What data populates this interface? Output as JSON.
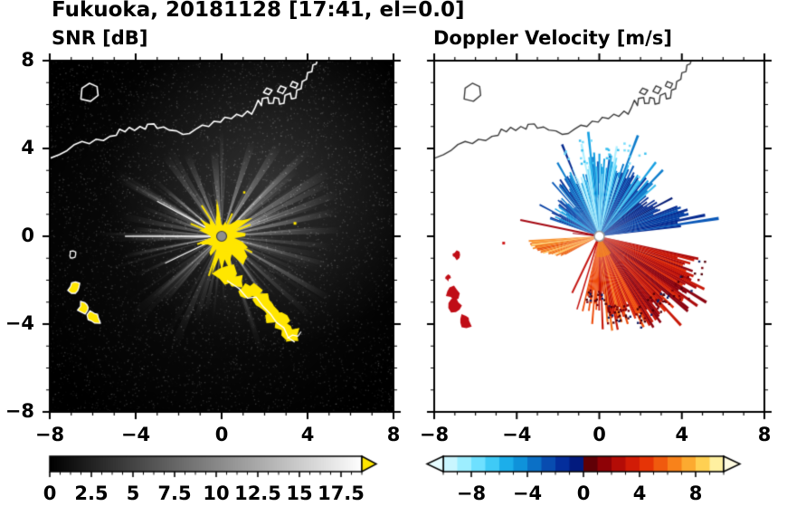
{
  "title": "Fukuoka, 20181128 [17:41, el=0.0]",
  "panels": [
    {
      "title": "SNR [dB]",
      "xlim": [
        -8,
        8
      ],
      "ylim": [
        -8,
        8
      ],
      "xtick_values": [
        -8,
        -4,
        0,
        4,
        8
      ],
      "xtick_labels": [
        "−8",
        "−4",
        "0",
        "4",
        "8"
      ],
      "ytick_values": [
        8,
        4,
        0,
        -4,
        -8
      ],
      "ytick_labels": [
        "8",
        "4",
        "0",
        "−4",
        "−8"
      ]
    },
    {
      "title": "Doppler Velocity [m/s]",
      "xlim": [
        -8,
        8
      ],
      "ylim": [
        -8,
        8
      ],
      "xtick_values": [
        -8,
        -4,
        0,
        4,
        8
      ],
      "xtick_labels": [
        "−8",
        "−4",
        "0",
        "4",
        "8"
      ],
      "ytick_values": [
        8,
        4,
        0,
        -4,
        -8
      ],
      "ytick_labels": []
    }
  ],
  "colorbars": [
    {
      "panel": "SNR",
      "vmin": 0,
      "vmax": 18.75,
      "tick_values": [
        0,
        2.5,
        5,
        7.5,
        10,
        12.5,
        15,
        17.5
      ],
      "tick_labels": [
        "0",
        "2.5",
        "5",
        "7.5",
        "10",
        "12.5",
        "15",
        "17.5"
      ],
      "bar_color_start": "#000000",
      "bar_color_end": "#ffffff",
      "over_arrow_color": "#ffe600"
    },
    {
      "panel": "Doppler",
      "vmin": -10,
      "vmax": 10,
      "tick_values": [
        -8,
        -4,
        0,
        4,
        8
      ],
      "tick_labels": [
        "−8",
        "−4",
        "0",
        "4",
        "8"
      ],
      "segments": [
        "#c9f6ff",
        "#9deeff",
        "#6ee0ff",
        "#3fcaf6",
        "#1caeea",
        "#0f92da",
        "#0b70c6",
        "#084cb0",
        "#042e9c",
        "#021a7e",
        "#600006",
        "#8e0206",
        "#b40c06",
        "#d21c06",
        "#e63406",
        "#f05a0e",
        "#f8821a",
        "#fcaa30",
        "#ffd052",
        "#fff0a0"
      ],
      "under_arrow_color": "#e6fcff",
      "over_arrow_color": "#fffbe0"
    }
  ],
  "coastline": {
    "mainland": [
      [
        -8,
        3.55
      ],
      [
        -7.55,
        3.72
      ],
      [
        -7.2,
        3.9
      ],
      [
        -6.85,
        4.18
      ],
      [
        -6.5,
        4.32
      ],
      [
        -6.15,
        4.22
      ],
      [
        -5.85,
        4.42
      ],
      [
        -5.5,
        4.36
      ],
      [
        -5.2,
        4.55
      ],
      [
        -4.9,
        4.6
      ],
      [
        -4.75,
        4.88
      ],
      [
        -4.5,
        4.76
      ],
      [
        -4.3,
        4.96
      ],
      [
        -4.05,
        4.82
      ],
      [
        -3.8,
        5.0
      ],
      [
        -3.55,
        4.88
      ],
      [
        -3.45,
        5.1
      ],
      [
        -3.15,
        5.12
      ],
      [
        -3.0,
        4.92
      ],
      [
        -2.7,
        4.98
      ],
      [
        -2.45,
        4.84
      ],
      [
        -2.1,
        4.8
      ],
      [
        -1.8,
        4.64
      ],
      [
        -1.5,
        4.68
      ],
      [
        -1.2,
        4.88
      ],
      [
        -0.9,
        5.06
      ],
      [
        -0.6,
        5.0
      ],
      [
        -0.35,
        5.24
      ],
      [
        -0.05,
        5.2
      ],
      [
        0.15,
        5.42
      ],
      [
        0.45,
        5.36
      ],
      [
        0.7,
        5.56
      ],
      [
        0.95,
        5.46
      ],
      [
        1.2,
        5.7
      ],
      [
        1.4,
        5.56
      ],
      [
        1.55,
        5.85
      ],
      [
        1.7,
        6.2
      ],
      [
        1.85,
        5.95
      ],
      [
        1.9,
        6.28
      ],
      [
        2.15,
        6.32
      ],
      [
        2.2,
        6.05
      ],
      [
        2.4,
        6.06
      ],
      [
        2.45,
        6.32
      ],
      [
        2.65,
        6.28
      ],
      [
        2.7,
        6.02
      ],
      [
        2.9,
        6.06
      ],
      [
        2.95,
        6.42
      ],
      [
        3.2,
        6.52
      ],
      [
        3.25,
        6.26
      ],
      [
        3.45,
        6.3
      ],
      [
        3.5,
        6.66
      ],
      [
        3.7,
        6.72
      ],
      [
        3.75,
        7.05
      ],
      [
        3.95,
        7.15
      ],
      [
        4.0,
        7.45
      ],
      [
        4.2,
        7.5
      ],
      [
        4.25,
        7.8
      ],
      [
        4.4,
        7.85
      ],
      [
        4.45,
        8.0
      ]
    ],
    "island": [
      [
        -6.55,
        6.25
      ],
      [
        -6.1,
        6.15
      ],
      [
        -5.75,
        6.42
      ],
      [
        -5.8,
        6.82
      ],
      [
        -6.15,
        6.97
      ],
      [
        -6.5,
        6.75
      ]
    ],
    "harbor_details": [
      [
        [
          1.95,
          6.55
        ],
        [
          2.1,
          6.75
        ],
        [
          2.35,
          6.65
        ],
        [
          2.2,
          6.45
        ]
      ],
      [
        [
          2.6,
          6.6
        ],
        [
          2.75,
          6.85
        ],
        [
          3.0,
          6.75
        ],
        [
          2.85,
          6.5
        ]
      ],
      [
        [
          3.2,
          6.85
        ],
        [
          3.3,
          7.05
        ],
        [
          3.55,
          6.95
        ],
        [
          3.45,
          6.75
        ]
      ]
    ]
  },
  "chart_data": [
    {
      "type": "heatmap",
      "title": "SNR [dB]",
      "xlim": [
        -8,
        8
      ],
      "ylim": [
        -8,
        8
      ],
      "xticks": [
        -8,
        -4,
        0,
        4,
        8
      ],
      "yticks": [
        8,
        4,
        0,
        -4,
        -8
      ],
      "background_color": "#000000",
      "radar_origin_xy": [
        0,
        0
      ],
      "colorbar": {
        "vmin": 0,
        "vmax": 18.75,
        "ticks": [
          0,
          2.5,
          5,
          7.5,
          10,
          12.5,
          15,
          17.5
        ],
        "colormap": "black-to-white grayscale",
        "over_color": "#ffe600"
      },
      "features": {
        "beam_texture": "bright radial spokes from radar origin over dark speckle noise, broad bright haze in NE quadrant, strong thin horizontal ray toward west",
        "saturated_core": {
          "color": "#ffe600",
          "radius": 1.3
        },
        "south_coast_clutter_path": [
          [
            0.15,
            -1.7
          ],
          [
            0.7,
            -2.05
          ],
          [
            1.1,
            -2.5
          ],
          [
            1.5,
            -2.45
          ],
          [
            1.85,
            -2.9
          ],
          [
            2.2,
            -3.25
          ],
          [
            2.45,
            -3.6
          ],
          [
            2.8,
            -3.85
          ],
          [
            3.0,
            -4.3
          ],
          [
            3.3,
            -4.5
          ]
        ],
        "west_clutter_xy": [
          [
            -6.95,
            -0.85
          ],
          [
            -6.85,
            -2.35
          ],
          [
            -6.4,
            -3.25
          ],
          [
            -5.95,
            -3.7
          ]
        ],
        "coastline_color": "#ffffff",
        "center_marker_color": "#8e8e8e"
      }
    },
    {
      "type": "heatmap",
      "title": "Doppler Velocity [m/s]",
      "xlim": [
        -8,
        8
      ],
      "ylim": [
        -8,
        8
      ],
      "xticks": [
        -8,
        -4,
        0,
        4,
        8
      ],
      "yticks": [
        8,
        4,
        0,
        -4,
        -8
      ],
      "background_color": "#ffffff",
      "radar_origin_xy": [
        0,
        0
      ],
      "colorbar": {
        "vmin": -10,
        "vmax": 10,
        "ticks": [
          -8,
          -4,
          0,
          4,
          8
        ],
        "colormap": "cyan-blue (negative) to dark red-orange-yellow (positive), dark transition at 0"
      },
      "features": {
        "negative_velocity_fan": {
          "angle_deg": [
            6,
            162
          ],
          "max_range": 4.4,
          "note": "dark navy toward east edge, mixed blues with cyan streaks toward north"
        },
        "positive_west_lobe": {
          "angle_deg": [
            183,
            207
          ],
          "max_range": 3.7,
          "note": "orange"
        },
        "positive_south_fan": {
          "angle_deg": [
            256,
            348
          ],
          "max_range": 5.2,
          "note": "red with dark maroon flecks at edges"
        },
        "thin_ray_west_deg": 169,
        "west_clutter_xy": [
          [
            -6.95,
            -0.85
          ],
          [
            -7.1,
            -2.6
          ],
          [
            -7.0,
            -3.15
          ],
          [
            -6.5,
            -3.85
          ],
          [
            -7.35,
            -1.9
          ]
        ],
        "blue_palette": [
          "#b0f0ff",
          "#74dcfc",
          "#3cc0f0",
          "#16a0e2",
          "#0c7ccc",
          "#0a58b8",
          "#0740a4",
          "#052a90",
          "#031a74"
        ],
        "orange_palette": [
          "#ffc45e",
          "#fca63c",
          "#f78a28",
          "#f06e18",
          "#e8560e"
        ],
        "red_palette": [
          "#f4701c",
          "#ee4c0c",
          "#e02c08",
          "#c81808",
          "#ac0a0a",
          "#8c0410"
        ],
        "clutter_color": "#c00d16",
        "coastline_color": "#3c3c3c",
        "center_marker_color": "#ffffff"
      }
    }
  ]
}
